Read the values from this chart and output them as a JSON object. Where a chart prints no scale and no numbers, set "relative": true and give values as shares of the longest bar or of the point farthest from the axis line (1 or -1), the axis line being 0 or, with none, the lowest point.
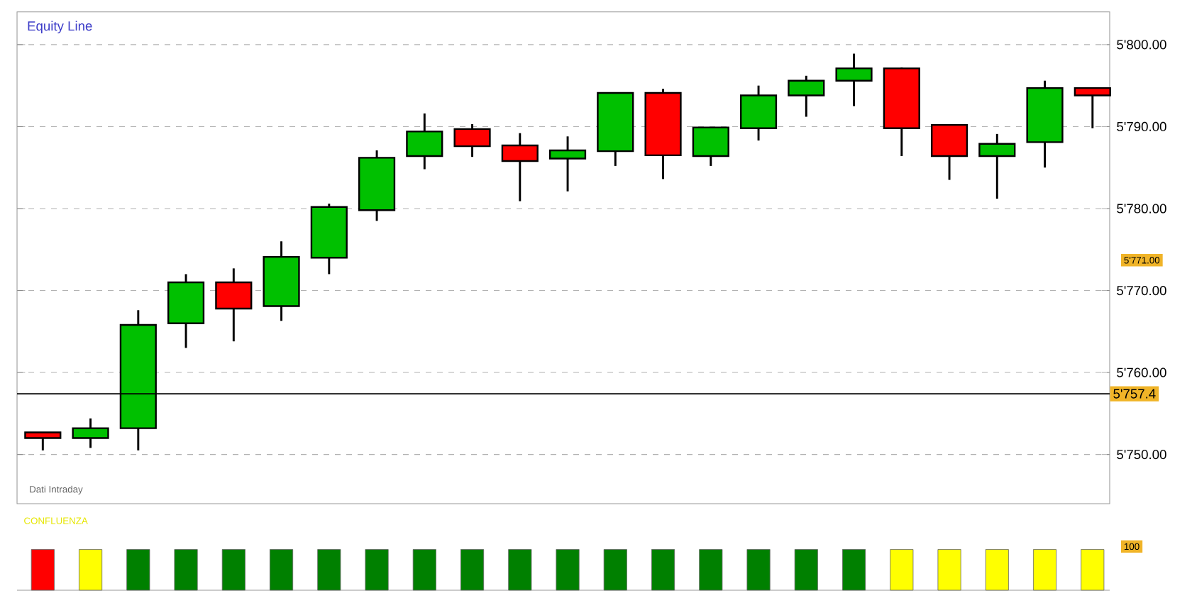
{
  "chart_data": [
    {
      "type": "candlestick",
      "title": "Equity Line",
      "categories": [
        null,
        null,
        null,
        null,
        null,
        null,
        null,
        null,
        null,
        null,
        null,
        null,
        null,
        null,
        null,
        null,
        null,
        null,
        null,
        null,
        null,
        null,
        null
      ],
      "ohlc": [
        [
          5752.7,
          5752.7,
          5750.5,
          5752.0
        ],
        [
          5752.0,
          5754.4,
          5750.8,
          5753.2
        ],
        [
          5753.2,
          5767.6,
          5750.5,
          5765.8
        ],
        [
          5766.0,
          5772.0,
          5763.0,
          5771.0
        ],
        [
          5771.0,
          5772.7,
          5763.8,
          5767.8
        ],
        [
          5768.1,
          5776.0,
          5766.3,
          5774.1
        ],
        [
          5774.0,
          5780.6,
          5772.0,
          5780.2
        ],
        [
          5779.8,
          5787.1,
          5778.5,
          5786.2
        ],
        [
          5786.4,
          5791.6,
          5784.8,
          5789.4
        ],
        [
          5789.7,
          5790.3,
          5786.3,
          5787.6
        ],
        [
          5787.7,
          5789.2,
          5780.9,
          5785.8
        ],
        [
          5786.1,
          5788.8,
          5782.1,
          5787.1
        ],
        [
          5787.0,
          5794.1,
          5785.2,
          5794.1
        ],
        [
          5794.1,
          5794.6,
          5783.6,
          5786.5
        ],
        [
          5786.4,
          5789.9,
          5785.2,
          5789.9
        ],
        [
          5789.8,
          5795.0,
          5788.3,
          5793.8
        ],
        [
          5793.8,
          5796.2,
          5791.2,
          5795.6
        ],
        [
          5795.6,
          5798.9,
          5792.5,
          5797.1
        ],
        [
          5797.1,
          5797.2,
          5786.4,
          5789.8
        ],
        [
          5790.2,
          5790.2,
          5783.5,
          5786.4
        ],
        [
          5786.4,
          5789.1,
          5781.2,
          5787.9
        ],
        [
          5788.1,
          5795.6,
          5785.0,
          5794.7
        ],
        [
          5794.7,
          5794.7,
          5789.8,
          5793.8
        ]
      ],
      "colors": [
        "#ff0000",
        "#00c000",
        "#00c000",
        "#00c000",
        "#ff0000",
        "#00c000",
        "#00c000",
        "#00c000",
        "#00c000",
        "#ff0000",
        "#ff0000",
        "#00c000",
        "#00c000",
        "#ff0000",
        "#00c000",
        "#00c000",
        "#00c000",
        "#00c000",
        "#ff0000",
        "#ff0000",
        "#00c000",
        "#00c000",
        "#ff0000"
      ],
      "ylim": [
        5744,
        5804
      ],
      "yticks": [
        {
          "value": 5750,
          "label": "5'750.00"
        },
        {
          "value": 5760,
          "label": "5'760.00"
        },
        {
          "value": 5770,
          "label": "5'770.00"
        },
        {
          "value": 5780,
          "label": "5'780.00"
        },
        {
          "value": 5790,
          "label": "5'790.00"
        },
        {
          "value": 5800,
          "label": "5'800.00"
        }
      ],
      "grid": "y",
      "tick_labels": "y",
      "ref_lines": [
        {
          "axis": "y",
          "value": 5757.4,
          "label": "5'757.4",
          "color": "#000000"
        }
      ],
      "annotations": [
        "5'771.00",
        "Dati Intraday"
      ]
    },
    {
      "type": "bar",
      "title": "CONFLUENZA",
      "relative": true,
      "categories": [
        null,
        null,
        null,
        null,
        null,
        null,
        null,
        null,
        null,
        null,
        null,
        null,
        null,
        null,
        null,
        null,
        null,
        null,
        null,
        null,
        null,
        null,
        null
      ],
      "values": [
        1,
        1,
        1,
        1,
        1,
        1,
        1,
        1,
        1,
        1,
        1,
        1,
        1,
        1,
        1,
        1,
        1,
        1,
        1,
        1,
        1,
        1,
        1
      ],
      "colors": [
        "#ff0000",
        "#ffff00",
        "#008000",
        "#008000",
        "#008000",
        "#008000",
        "#008000",
        "#008000",
        "#008000",
        "#008000",
        "#008000",
        "#008000",
        "#008000",
        "#008000",
        "#008000",
        "#008000",
        "#008000",
        "#008000",
        "#ffff00",
        "#ffff00",
        "#ffff00",
        "#ffff00",
        "#ffff00"
      ],
      "tick_labels": false,
      "annotations": [
        "100"
      ]
    }
  ]
}
